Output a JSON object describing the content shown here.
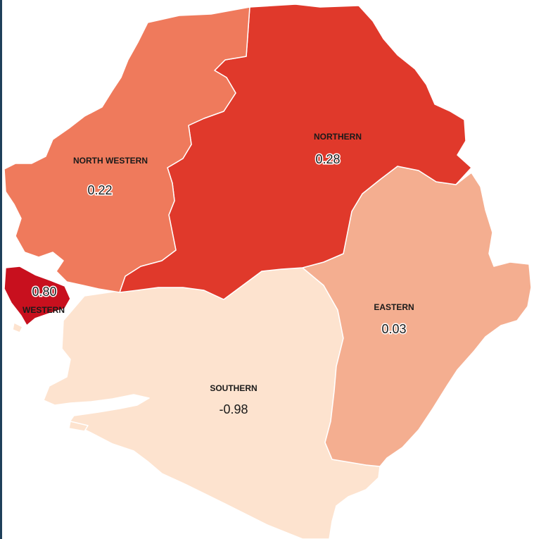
{
  "map": {
    "colors": {
      "northern": "#e0392b",
      "north_western": "#ef7a5c",
      "western": "#c8101e",
      "eastern": "#f4ae90",
      "southern": "#fde3cf",
      "frame": "#1e3f5a"
    },
    "regions": [
      {
        "id": "northern",
        "name": "NORTHERN",
        "value": "0.28"
      },
      {
        "id": "north_western",
        "name": "NORTH WESTERN",
        "value": "0.22"
      },
      {
        "id": "western",
        "name": "WESTERN",
        "value": "0.80"
      },
      {
        "id": "eastern",
        "name": "EASTERN",
        "value": "0.03"
      },
      {
        "id": "southern",
        "name": "SOUTHERN",
        "value": "-0.98"
      }
    ]
  }
}
